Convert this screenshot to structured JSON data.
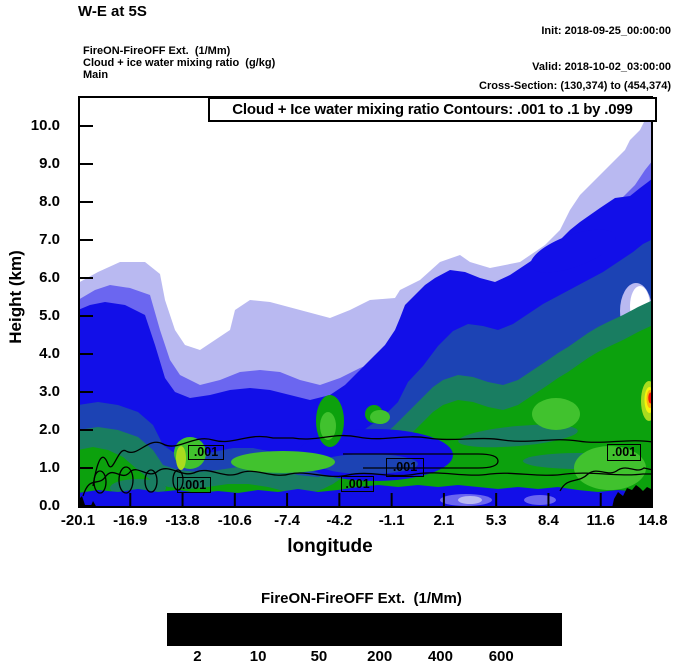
{
  "header": {
    "title": "W-E at 5S",
    "init": "Init: 2018-09-25_00:00:00",
    "valid": "Valid: 2018-10-02_03:00:00",
    "field_line": "FireON-FireOFF Ext.  (1/Mm)",
    "overlay_line": "Cloud + ice water mixing ratio  (g/kg)",
    "domain_line": "Main",
    "cross_section": "Cross-Section: (130,374) to (454,374)"
  },
  "plot": {
    "contour_info": "Cloud + Ice water mixing ratio Contours: .001 to .1 by .099",
    "xlabel": "longitude",
    "ylabel": "Height (km)",
    "contour_label": ".001"
  },
  "colorbar": {
    "title": "FireON-FireOFF Ext.  (1/Mm)",
    "tick_labels": [
      "2",
      "10",
      "50",
      "200",
      "400",
      "600"
    ],
    "boundary_indices": [
      1,
      3,
      5,
      7,
      9,
      11
    ],
    "colors": [
      "#ffffff",
      "#b9b9f1",
      "#6b66f0",
      "#120fe8",
      "#1c43b4",
      "#197d61",
      "#0ca10d",
      "#41c22e",
      "#a9dc1e",
      "#f5f50a",
      "#fdb00e",
      "#fd5f07",
      "#f31507"
    ]
  },
  "chart_data": {
    "type": "heatmap",
    "subtype": "filled_contour_vertical_cross_section",
    "title": "W-E at 5S",
    "xlabel": "longitude",
    "ylabel": "Height (km)",
    "x_ticks": [
      -20.1,
      -16.9,
      -13.8,
      -10.6,
      -7.4,
      -4.2,
      -1.1,
      2.1,
      5.3,
      8.4,
      11.6,
      14.8
    ],
    "x_tick_labels": [
      "-20.1",
      "-16.9",
      "-13.8",
      "-10.6",
      "-7.4",
      "-4.2",
      "-1.1",
      "2.1",
      "5.3",
      "8.4",
      "11.6",
      "14.8"
    ],
    "y_ticks": [
      0,
      1,
      2,
      3,
      4,
      5,
      6,
      7,
      8,
      9,
      10
    ],
    "y_tick_labels": [
      "0.0",
      "1.0",
      "2.0",
      "3.0",
      "4.0",
      "5.0",
      "6.0",
      "7.0",
      "8.0",
      "9.0",
      "10.0"
    ],
    "xlim": [
      -20.1,
      14.8
    ],
    "ylim": [
      0,
      10.8
    ],
    "grid": false,
    "legend_position": "bottom",
    "fill_variable": {
      "name": "FireON-FireOFF Ext.",
      "units": "1/Mm",
      "labeled_levels": [
        2,
        10,
        50,
        200,
        400,
        600
      ],
      "palette": [
        "#ffffff",
        "#b9b9f1",
        "#6b66f0",
        "#120fe8",
        "#1c43b4",
        "#197d61",
        "#0ca10d",
        "#41c22e",
        "#a9dc1e",
        "#f5f50a",
        "#fdb00e",
        "#fd5f07",
        "#f31507"
      ]
    },
    "overlay_contours": {
      "variable": "Cloud + Ice water mixing ratio",
      "units": "g/kg",
      "levels": [
        0.001,
        0.1
      ],
      "visible_labels": [
        ".001",
        ".001",
        ".001",
        ".001",
        ".001"
      ]
    },
    "estimated_band_tops_km": {
      "x": [
        -20.1,
        -16.9,
        -13.8,
        -10.6,
        -7.4,
        -4.2,
        -1.1,
        2.1,
        5.3,
        8.4,
        11.6,
        14.8
      ],
      "top_of_ext_gt_2": [
        5.9,
        6.4,
        4.3,
        4.8,
        5.3,
        5.0,
        5.5,
        6.5,
        6.3,
        6.9,
        8.7,
        10.3
      ],
      "top_of_ext_gt_200": [
        1.5,
        1.0,
        1.2,
        1.6,
        0.9,
        1.3,
        2.3,
        2.9,
        3.6,
        4.2,
        4.6,
        5.4
      ]
    },
    "hotspot": {
      "x_approx": 14.5,
      "height_km_approx": 2.8,
      "max_color": "red (> 600 1/Mm)"
    },
    "terrain_mask": "black terrain silhouette at lower-right, ~12.4E to 14.8E, peak ~0.55 km; small black spurs at lower-left edge"
  }
}
